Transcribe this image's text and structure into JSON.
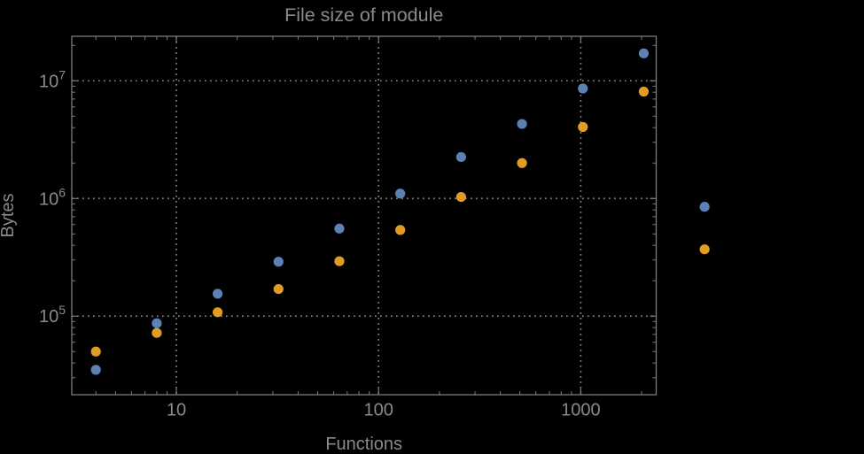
{
  "page": {
    "background_color": "#000000"
  },
  "chart_data": {
    "type": "scatter",
    "title": "File size of module",
    "xlabel": "Functions",
    "ylabel": "Bytes",
    "x_scale": "log",
    "y_scale": "log",
    "xlim": [
      3.04,
      2360
    ],
    "ylim": [
      21500,
      23900000
    ],
    "x_major_ticks": [
      10,
      100,
      1000
    ],
    "x_tick_labels": [
      "10",
      "100",
      "1000"
    ],
    "y_major_ticks": [
      100000,
      1000000,
      10000000
    ],
    "y_tick_labels": [
      {
        "base": "10",
        "exp": "5"
      },
      {
        "base": "10",
        "exp": "6"
      },
      {
        "base": "10",
        "exp": "7"
      }
    ],
    "grid": "dotted gridlines at major ticks, frame ticks on all four sides",
    "legend": "none",
    "x": [
      4,
      8,
      16,
      32,
      64,
      128,
      256,
      512,
      1024,
      2048,
      4096
    ],
    "series": [
      {
        "name": "blue-series",
        "color": "#5E81B5",
        "values": [
          35000,
          87000,
          155000,
          290000,
          555000,
          1100000,
          2250000,
          4300000,
          8600000,
          17100000,
          850000
        ]
      },
      {
        "name": "orange-series",
        "color": "#E19C24",
        "values": [
          50000,
          72000,
          108000,
          170000,
          293000,
          540000,
          1030000,
          2000000,
          4050000,
          8100000,
          370000
        ]
      }
    ],
    "frame_color": "#7c7c7c",
    "grid_color": "#828282",
    "text_color": "#8a8a8a",
    "note": "last data pair (x=4096) is rendered outside the right frame edge, unclipped"
  }
}
